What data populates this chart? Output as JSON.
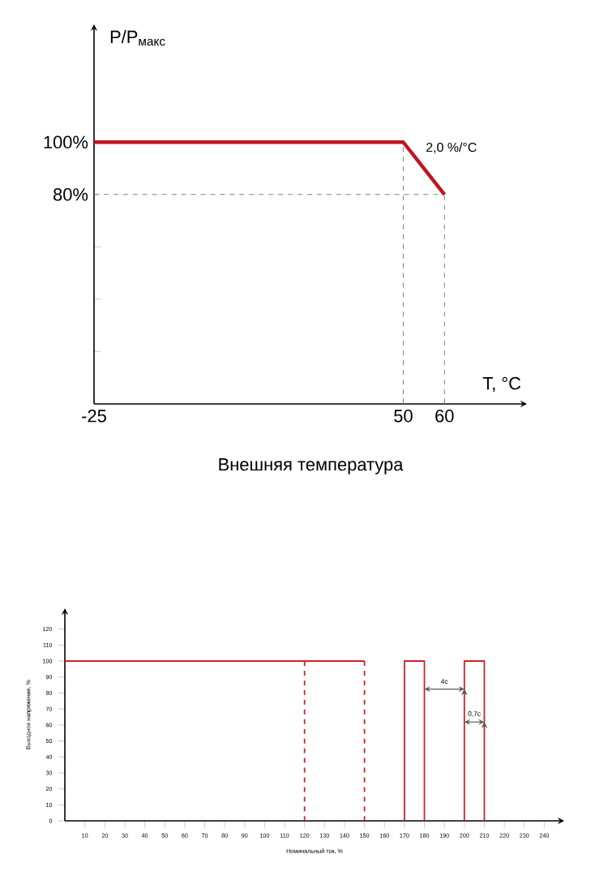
{
  "chart_data": [
    {
      "type": "line",
      "x": [
        -25,
        50,
        60
      ],
      "values": [
        100,
        100,
        80
      ],
      "color": "#c0141e",
      "xlabel": "T, °C",
      "ylabel": "P/P$_{макс}$",
      "xlim": [
        -25,
        80
      ],
      "ylim": [
        0,
        145
      ],
      "xticks": [
        -25,
        50,
        60
      ],
      "yticks": [
        {
          "value": 20,
          "label": null
        },
        {
          "value": 40,
          "label": null
        },
        {
          "value": 60,
          "label": null
        },
        {
          "value": 80,
          "label": "80%"
        },
        {
          "value": 100,
          "label": "100%"
        }
      ],
      "ref_lines": [
        {
          "axis": "x",
          "value": 50,
          "color": "#808080",
          "line_style": "dashed"
        },
        {
          "axis": "x",
          "value": 60,
          "color": "#808080",
          "line_style": "dashed"
        },
        {
          "axis": "y",
          "value": 80,
          "color": "#808080",
          "line_style": "dashed"
        }
      ],
      "annotations": [
        {
          "text": "2,0 %/°C",
          "x": 55,
          "y": 90
        },
        "Внешняя температура"
      ]
    },
    {
      "type": "line",
      "color": "#d0202a",
      "xlabel": "Номинальный ток, %",
      "ylabel": "Выходное напряжение, %",
      "xlim": [
        0,
        250
      ],
      "ylim": [
        0,
        133
      ],
      "xticks": [
        10,
        20,
        30,
        40,
        50,
        60,
        70,
        80,
        90,
        100,
        110,
        120,
        130,
        140,
        150,
        160,
        170,
        180,
        190,
        200,
        210,
        220,
        230,
        240
      ],
      "yticks": [
        0,
        10,
        20,
        30,
        40,
        50,
        60,
        70,
        80,
        90,
        100,
        110,
        120
      ],
      "series": [
        {
          "x": [
            0,
            150
          ],
          "values": [
            100,
            100
          ],
          "line_style": "solid"
        },
        {
          "x": [
            120,
            120
          ],
          "values": [
            100,
            0
          ],
          "line_style": "dashed"
        },
        {
          "x": [
            150,
            150
          ],
          "values": [
            100,
            0
          ],
          "line_style": "dashed"
        },
        {
          "x": [
            170,
            170,
            180,
            180
          ],
          "values": [
            0,
            100,
            100,
            0
          ],
          "line_style": "solid"
        },
        {
          "x": [
            200,
            200,
            210,
            210
          ],
          "values": [
            0,
            100,
            100,
            0
          ],
          "line_style": "solid"
        }
      ],
      "annotations": [
        "4c",
        "0,7c"
      ]
    }
  ]
}
